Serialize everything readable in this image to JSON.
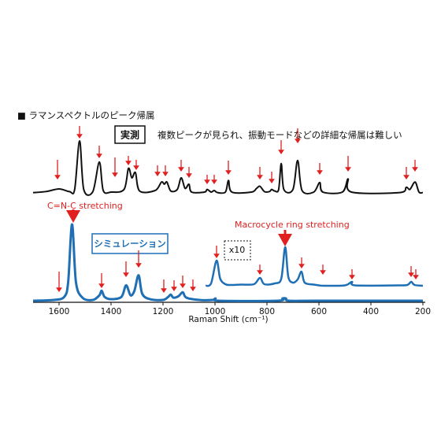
{
  "chart_data": {
    "type": "line",
    "title": "■ ラマンスペクトルのピーク帰属",
    "note": "複数ピークが見られ、振動モードなどの詳細な帰属は難しい",
    "annotations": [
      "C=N-C stretching",
      "Macrocycle ring stretching"
    ],
    "x_label": "Raman Shift (cm⁻¹)",
    "xlim": [
      1700,
      200
    ],
    "xticks": [
      1600,
      1400,
      1200,
      1000,
      800,
      600,
      400,
      200
    ],
    "ylim": [
      0,
      100
    ],
    "series": [
      {
        "name": "実測",
        "color": "#111111",
        "x": [
          1700,
          1650,
          1600,
          1560,
          1540,
          1521,
          1505,
          1470,
          1445,
          1430,
          1400,
          1350,
          1333,
          1320,
          1306,
          1290,
          1230,
          1206,
          1195,
          1185,
          1170,
          1145,
          1130,
          1115,
          1100,
          1090,
          1040,
          1030,
          1015,
          1003,
          990,
          960,
          948,
          935,
          860,
          840,
          827,
          810,
          790,
          782,
          770,
          755,
          745,
          735,
          700,
          682,
          665,
          620,
          597,
          585,
          510,
          488,
          475,
          290,
          264,
          250,
          230,
          215,
          200
        ],
        "values": [
          2,
          4,
          9,
          4,
          8,
          100,
          8,
          4,
          60,
          6,
          3,
          8,
          48,
          30,
          40,
          5,
          6,
          22,
          18,
          22,
          5,
          8,
          30,
          10,
          18,
          3,
          3,
          8,
          3,
          6,
          2,
          3,
          25,
          3,
          3,
          10,
          14,
          4,
          4,
          8,
          5,
          8,
          57,
          8,
          8,
          63,
          6,
          3,
          21,
          3,
          3,
          28,
          3,
          2,
          12,
          8,
          22,
          3,
          2
        ]
      },
      {
        "name": "シミュレーション",
        "color": "#1f6fb5",
        "x": [
          1700,
          1620,
          1580,
          1565,
          1550,
          1535,
          1510,
          1470,
          1445,
          1436,
          1425,
          1400,
          1360,
          1342,
          1325,
          1310,
          1294,
          1280,
          1250,
          1200,
          1180,
          1170,
          1160,
          1140,
          1124,
          1110,
          1060,
          1010,
          998,
          985,
          760,
          740,
          727,
          715,
          600,
          200
        ],
        "values": [
          1,
          2,
          6,
          25,
          100,
          25,
          5,
          2,
          8,
          14,
          6,
          3,
          6,
          21,
          8,
          14,
          34,
          10,
          3,
          2,
          6,
          9,
          5,
          7,
          12,
          5,
          2,
          2,
          4,
          1,
          1,
          4,
          4,
          1,
          1,
          1
        ]
      },
      {
        "name": "x10",
        "color": "#1f6fb5",
        "x": [
          1036,
          1015,
          994,
          980,
          960,
          940,
          900,
          850,
          827,
          810,
          770,
          745,
          730,
          718,
          700,
          682,
          667,
          655,
          620,
          600,
          580,
          500,
          473,
          460,
          300,
          260,
          245,
          232,
          200
        ],
        "values": [
          2,
          8,
          66,
          20,
          6,
          4,
          5,
          6,
          22,
          6,
          8,
          20,
          100,
          25,
          10,
          18,
          38,
          10,
          5,
          3,
          2,
          3,
          12,
          3,
          3,
          4,
          12,
          4,
          2
        ]
      }
    ]
  }
}
